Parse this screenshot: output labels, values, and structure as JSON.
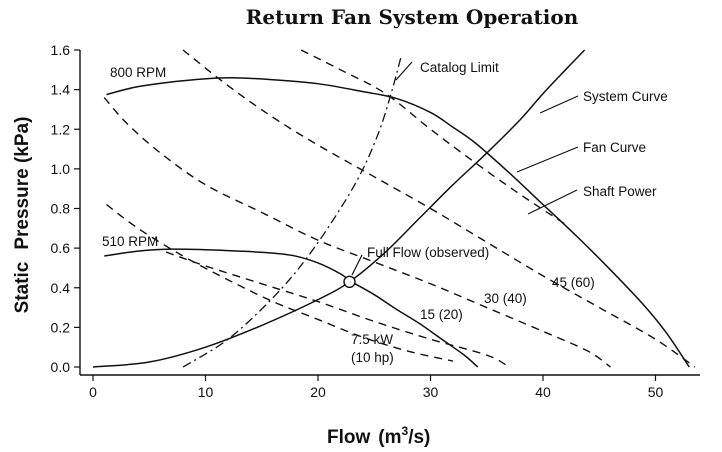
{
  "chart_data": {
    "type": "line",
    "title": "Return Fan System Operation",
    "xlabel": "Flow",
    "xlabel_unit_base": "(m",
    "xlabel_unit_sup": "3",
    "xlabel_unit_tail": "/s)",
    "ylabel_left": "Static",
    "ylabel_right": "Pressure (kPa)",
    "xlim": [
      -1,
      55
    ],
    "ylim": [
      -0.05,
      1.65
    ],
    "x_ticks": [
      0,
      10,
      20,
      30,
      40,
      50
    ],
    "x_tick_labels": [
      "0",
      "10",
      "20",
      "30",
      "40",
      "50"
    ],
    "y_ticks": [
      0.0,
      0.2,
      0.4,
      0.6,
      0.8,
      1.0,
      1.2,
      1.4,
      1.6
    ],
    "y_tick_labels": [
      "0.0",
      "0.2",
      "0.4",
      "0.6",
      "0.8",
      "1.0",
      "1.2",
      "1.4",
      "1.6"
    ],
    "series": [
      {
        "name": "Fan Curve (800 RPM)",
        "style": "solid",
        "points": [
          [
            1.2,
            1.375
          ],
          [
            4,
            1.415
          ],
          [
            8,
            1.445
          ],
          [
            12,
            1.46
          ],
          [
            16,
            1.45
          ],
          [
            20,
            1.43
          ],
          [
            24,
            1.39
          ],
          [
            27,
            1.355
          ],
          [
            30,
            1.285
          ],
          [
            32,
            1.21
          ],
          [
            34,
            1.13
          ],
          [
            37,
            0.98
          ],
          [
            40,
            0.82
          ],
          [
            43,
            0.66
          ],
          [
            46,
            0.49
          ],
          [
            49,
            0.31
          ],
          [
            51,
            0.17
          ],
          [
            53,
            0.0
          ]
        ]
      },
      {
        "name": "Fan Curve (510 RPM)",
        "style": "solid",
        "points": [
          [
            1,
            0.56
          ],
          [
            4,
            0.585
          ],
          [
            7,
            0.595
          ],
          [
            10,
            0.592
          ],
          [
            13,
            0.585
          ],
          [
            16,
            0.575
          ],
          [
            18,
            0.56
          ],
          [
            20,
            0.525
          ],
          [
            22,
            0.47
          ],
          [
            23,
            0.43
          ],
          [
            25,
            0.365
          ],
          [
            27,
            0.29
          ],
          [
            29,
            0.22
          ],
          [
            31,
            0.14
          ],
          [
            33,
            0.06
          ],
          [
            34.2,
            0.0
          ]
        ]
      },
      {
        "name": "System Curve",
        "style": "solid",
        "points": [
          [
            0,
            0.0
          ],
          [
            5,
            0.025
          ],
          [
            10,
            0.1
          ],
          [
            15,
            0.21
          ],
          [
            20,
            0.34
          ],
          [
            22.8,
            0.43
          ],
          [
            26,
            0.58
          ],
          [
            29,
            0.75
          ],
          [
            32,
            0.92
          ],
          [
            35,
            1.08
          ],
          [
            38,
            1.25
          ],
          [
            40,
            1.38
          ],
          [
            42,
            1.5
          ],
          [
            43.7,
            1.6
          ]
        ]
      },
      {
        "name": "Catalog Limit",
        "style": "dashdot",
        "points": [
          [
            8,
            0.0
          ],
          [
            12,
            0.14
          ],
          [
            16,
            0.35
          ],
          [
            19,
            0.55
          ],
          [
            22,
            0.8
          ],
          [
            24,
            1.0
          ],
          [
            25.5,
            1.2
          ],
          [
            26.6,
            1.4
          ],
          [
            27.4,
            1.57
          ]
        ]
      },
      {
        "name": "7.5 kW (10 hp)",
        "style": "dash",
        "points": [
          [
            1.2,
            0.82
          ],
          [
            4,
            0.7
          ],
          [
            8,
            0.56
          ],
          [
            12,
            0.44
          ],
          [
            16,
            0.33
          ],
          [
            20,
            0.24
          ],
          [
            24,
            0.15
          ],
          [
            28,
            0.08
          ],
          [
            32,
            0.03
          ]
        ]
      },
      {
        "name": "15 (20)",
        "style": "dash",
        "points": [
          [
            6.5,
            0.58
          ],
          [
            10,
            0.51
          ],
          [
            15,
            0.42
          ],
          [
            20,
            0.33
          ],
          [
            25,
            0.23
          ],
          [
            30,
            0.14
          ],
          [
            35,
            0.06
          ],
          [
            37,
            0.0
          ]
        ]
      },
      {
        "name": "30 (40)",
        "style": "dash",
        "points": [
          [
            1,
            1.36
          ],
          [
            3,
            1.23
          ],
          [
            6,
            1.08
          ],
          [
            10,
            0.92
          ],
          [
            15,
            0.78
          ],
          [
            20,
            0.64
          ],
          [
            25,
            0.53
          ],
          [
            30,
            0.42
          ],
          [
            35,
            0.3
          ],
          [
            40,
            0.18
          ],
          [
            44,
            0.08
          ],
          [
            46,
            0.0
          ]
        ]
      },
      {
        "name": "45 (60)",
        "style": "dash",
        "points": [
          [
            8,
            1.6
          ],
          [
            12,
            1.42
          ],
          [
            16,
            1.26
          ],
          [
            20,
            1.12
          ],
          [
            25,
            0.96
          ],
          [
            30,
            0.8
          ],
          [
            35,
            0.63
          ],
          [
            40,
            0.46
          ],
          [
            45,
            0.3
          ],
          [
            50,
            0.14
          ],
          [
            53.5,
            0.0
          ]
        ]
      },
      {
        "name": "Shaft Power (upper)",
        "style": "dash",
        "points": [
          [
            18.5,
            1.6
          ],
          [
            22,
            1.5
          ],
          [
            26,
            1.38
          ],
          [
            30,
            1.2
          ],
          [
            34,
            1.03
          ],
          [
            38,
            0.87
          ],
          [
            42,
            0.72
          ]
        ]
      }
    ],
    "marker": {
      "name": "Full Flow (observed)",
      "x": 22.8,
      "y": 0.43
    },
    "annotations": [
      {
        "key": "rpm800",
        "text": "800 RPM"
      },
      {
        "key": "rpm510",
        "text": "510 RPM"
      },
      {
        "key": "catalog",
        "text": "Catalog Limit"
      },
      {
        "key": "system",
        "text": "System Curve"
      },
      {
        "key": "fan",
        "text": "Fan Curve"
      },
      {
        "key": "shaft",
        "text": "Shaft Power"
      },
      {
        "key": "fullflow",
        "text": "Full Flow (observed)"
      },
      {
        "key": "p15",
        "text": "15 (20)"
      },
      {
        "key": "p30",
        "text": "30 (40)"
      },
      {
        "key": "p45",
        "text": "45 (60)"
      },
      {
        "key": "p75a",
        "text": "7.5 kW"
      },
      {
        "key": "p75b",
        "text": "(10 hp)"
      }
    ],
    "grid": false,
    "legend": "none"
  }
}
